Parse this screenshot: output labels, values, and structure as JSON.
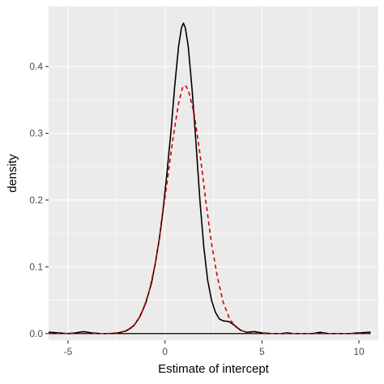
{
  "chart_data": {
    "type": "line",
    "title": "",
    "xlabel": "Estimate of intercept",
    "ylabel": "density",
    "xlim": [
      -6.0,
      11.0
    ],
    "ylim": [
      -0.01,
      0.49
    ],
    "x_ticks": [
      -5,
      0,
      5,
      10
    ],
    "x_tick_labels": [
      "-5",
      "0",
      "5",
      "10"
    ],
    "y_ticks": [
      0.0,
      0.1,
      0.2,
      0.3,
      0.4
    ],
    "y_tick_labels": [
      "0.0",
      "0.1",
      "0.2",
      "0.3",
      "0.4"
    ],
    "grid": true,
    "panel_background": "#ebebeb",
    "grid_color": "#ffffff",
    "legend": "none",
    "series": [
      {
        "style": "solid",
        "color": "#000000",
        "points": [
          [
            -6.0,
            0.002
          ],
          [
            -5.5,
            0.001
          ],
          [
            -5.0,
            0.0
          ],
          [
            -4.6,
            0.001
          ],
          [
            -4.2,
            0.003
          ],
          [
            -3.8,
            0.001
          ],
          [
            -3.3,
            0.0
          ],
          [
            -2.8,
            0.0
          ],
          [
            -2.4,
            0.001
          ],
          [
            -2.0,
            0.004
          ],
          [
            -1.6,
            0.012
          ],
          [
            -1.3,
            0.025
          ],
          [
            -1.0,
            0.045
          ],
          [
            -0.7,
            0.075
          ],
          [
            -0.5,
            0.105
          ],
          [
            -0.3,
            0.14
          ],
          [
            -0.1,
            0.185
          ],
          [
            0.1,
            0.24
          ],
          [
            0.3,
            0.3
          ],
          [
            0.5,
            0.37
          ],
          [
            0.7,
            0.43
          ],
          [
            0.85,
            0.458
          ],
          [
            0.95,
            0.465
          ],
          [
            1.05,
            0.458
          ],
          [
            1.2,
            0.43
          ],
          [
            1.4,
            0.365
          ],
          [
            1.6,
            0.285
          ],
          [
            1.8,
            0.2
          ],
          [
            2.0,
            0.13
          ],
          [
            2.2,
            0.08
          ],
          [
            2.4,
            0.05
          ],
          [
            2.6,
            0.032
          ],
          [
            2.8,
            0.022
          ],
          [
            3.0,
            0.019
          ],
          [
            3.3,
            0.018
          ],
          [
            3.6,
            0.012
          ],
          [
            3.9,
            0.005
          ],
          [
            4.2,
            0.002
          ],
          [
            4.6,
            0.003
          ],
          [
            5.0,
            0.001
          ],
          [
            5.5,
            0.0
          ],
          [
            6.0,
            0.0
          ],
          [
            6.3,
            0.001
          ],
          [
            6.6,
            0.0
          ],
          [
            7.2,
            0.0
          ],
          [
            7.6,
            0.0
          ],
          [
            8.0,
            0.002
          ],
          [
            8.4,
            0.0
          ],
          [
            9.0,
            0.0
          ],
          [
            9.5,
            0.0
          ],
          [
            10.0,
            0.001
          ],
          [
            10.6,
            0.002
          ]
        ]
      },
      {
        "style": "dashed",
        "color": "#cc0000",
        "points": [
          [
            -6.0,
            0.0
          ],
          [
            -5.0,
            0.0
          ],
          [
            -4.0,
            0.0
          ],
          [
            -3.0,
            0.0
          ],
          [
            -2.5,
            0.001
          ],
          [
            -2.0,
            0.004
          ],
          [
            -1.7,
            0.009
          ],
          [
            -1.4,
            0.02
          ],
          [
            -1.1,
            0.038
          ],
          [
            -0.8,
            0.065
          ],
          [
            -0.5,
            0.105
          ],
          [
            -0.2,
            0.16
          ],
          [
            0.1,
            0.225
          ],
          [
            0.4,
            0.29
          ],
          [
            0.7,
            0.345
          ],
          [
            0.9,
            0.368
          ],
          [
            1.05,
            0.372
          ],
          [
            1.2,
            0.365
          ],
          [
            1.5,
            0.33
          ],
          [
            1.8,
            0.27
          ],
          [
            2.1,
            0.2
          ],
          [
            2.4,
            0.135
          ],
          [
            2.7,
            0.085
          ],
          [
            3.0,
            0.047
          ],
          [
            3.3,
            0.024
          ],
          [
            3.6,
            0.011
          ],
          [
            3.9,
            0.005
          ],
          [
            4.3,
            0.001
          ],
          [
            5.0,
            0.0
          ],
          [
            6.0,
            0.0
          ],
          [
            8.0,
            0.0
          ],
          [
            10.0,
            0.0
          ],
          [
            10.6,
            0.0
          ]
        ]
      }
    ]
  }
}
